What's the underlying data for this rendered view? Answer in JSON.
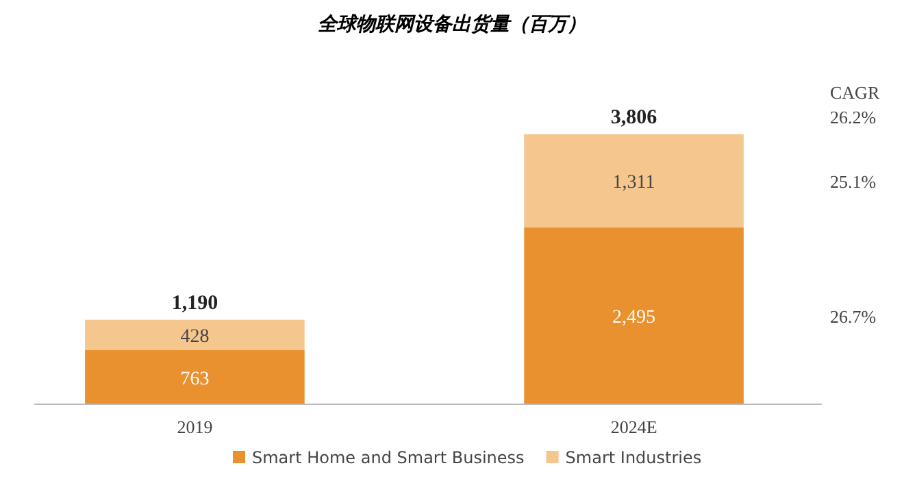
{
  "chart_data": {
    "type": "bar",
    "title": "全球物联网设备出货量（百万）",
    "categories": [
      "2019",
      "2024E"
    ],
    "stacked": true,
    "series": [
      {
        "name": "Smart Home and Smart Business",
        "color": "#e8912e",
        "values": [
          763,
          2495
        ],
        "value_labels": [
          "763",
          "2,495"
        ]
      },
      {
        "name": "Smart Industries",
        "color": "#f5c78f",
        "values": [
          428,
          1311
        ],
        "value_labels": [
          "428",
          "1,311"
        ]
      }
    ],
    "totals": [
      "1,190",
      "3,806"
    ],
    "annotations": [
      "CAGR",
      "26.2%",
      "25.1%",
      "26.7%"
    ],
    "legend": "bottom"
  }
}
